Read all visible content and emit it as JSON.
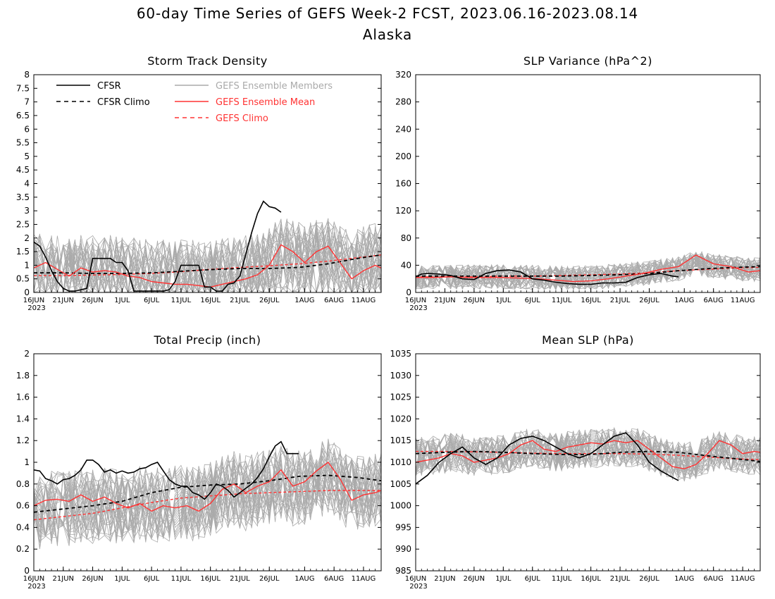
{
  "figure": {
    "title": "60-day Time Series of GEFS Week-2 FCST, 2023.06.16-2023.08.14",
    "subtitle": "Alaska"
  },
  "legend": {
    "items": [
      {
        "label": "CFSR",
        "color": "#000000",
        "dashed": false
      },
      {
        "label": "CFSR Climo",
        "color": "#000000",
        "dashed": true
      },
      {
        "label": "GEFS Ensemble Members",
        "color": "#aaaaaa",
        "dashed": false
      },
      {
        "label": "GEFS Ensemble Mean",
        "color": "#ff3333",
        "dashed": false
      },
      {
        "label": "GEFS Climo",
        "color": "#ff3333",
        "dashed": true
      }
    ]
  },
  "colors": {
    "cfsr": "#000000",
    "members": "#aaaaaa",
    "mean": "#ff3333"
  },
  "x_axis": {
    "ticks": [
      {
        "label": "16JUN",
        "day": 0
      },
      {
        "label": "21JUN",
        "day": 5
      },
      {
        "label": "26JUN",
        "day": 10
      },
      {
        "label": "1JUL",
        "day": 15
      },
      {
        "label": "6JUL",
        "day": 20
      },
      {
        "label": "11JUL",
        "day": 25
      },
      {
        "label": "16JUL",
        "day": 30
      },
      {
        "label": "21JUL",
        "day": 35
      },
      {
        "label": "26JUL",
        "day": 40
      },
      {
        "label": "1AUG",
        "day": 46
      },
      {
        "label": "6AUG",
        "day": 51
      },
      {
        "label": "11AUG",
        "day": 56
      }
    ],
    "year_label": "2023"
  },
  "chart_data": [
    {
      "type": "line",
      "title": "Storm Track Density",
      "ylim": [
        0,
        8
      ],
      "yticks": [
        "0",
        "0.5",
        "1",
        "1.5",
        "2",
        "2.5",
        "3",
        "3.5",
        "4",
        "4.5",
        "5",
        "5.5",
        "6",
        "6.5",
        "7",
        "7.5",
        "8"
      ],
      "ensemble_members": {
        "count": 30,
        "mean_level": 1.3,
        "spread": 1.4,
        "cap": 5.0,
        "floor": 0
      },
      "series": [
        {
          "name": "CFSR",
          "x": [
            0,
            1,
            2,
            3,
            4,
            5,
            6,
            7,
            8,
            9,
            10,
            11,
            12,
            13,
            14,
            15,
            16,
            17,
            18,
            19,
            20,
            21,
            22,
            23,
            24,
            25,
            26,
            27,
            28,
            29,
            30,
            31,
            32,
            33,
            34,
            35,
            36,
            37,
            38,
            39,
            40,
            41,
            42
          ],
          "y": [
            1.85,
            1.7,
            1.3,
            0.8,
            0.4,
            0.15,
            0.05,
            0.05,
            0.1,
            0.15,
            1.25,
            1.25,
            1.25,
            1.25,
            1.1,
            1.1,
            0.8,
            0.05,
            0.05,
            0.05,
            0.05,
            0.05,
            0.05,
            0.1,
            0.4,
            1.0,
            1.0,
            1.0,
            1.0,
            0.2,
            0.2,
            0.05,
            0.05,
            0.3,
            0.35,
            0.6,
            1.4,
            2.2,
            2.9,
            3.35,
            3.15,
            3.1,
            2.95
          ]
        },
        {
          "name": "CFSR Climo",
          "x": [
            0,
            5,
            10,
            15,
            20,
            25,
            30,
            35,
            40,
            45,
            50,
            55,
            59
          ],
          "y": [
            0.72,
            0.72,
            0.7,
            0.7,
            0.72,
            0.78,
            0.84,
            0.88,
            0.88,
            0.92,
            1.05,
            1.25,
            1.38
          ]
        },
        {
          "name": "GEFS Ensemble Mean",
          "x": [
            0,
            2,
            4,
            6,
            8,
            10,
            12,
            14,
            16,
            18,
            20,
            22,
            24,
            26,
            28,
            30,
            32,
            34,
            36,
            38,
            40,
            42,
            44,
            46,
            48,
            50,
            52,
            54,
            56,
            58,
            59
          ],
          "y": [
            0.9,
            1.1,
            0.85,
            0.6,
            0.9,
            0.75,
            0.8,
            0.75,
            0.6,
            0.55,
            0.4,
            0.35,
            0.3,
            0.3,
            0.25,
            0.2,
            0.3,
            0.4,
            0.5,
            0.65,
            1.0,
            1.75,
            1.5,
            1.1,
            1.5,
            1.7,
            1.1,
            0.5,
            0.8,
            1.0,
            0.9
          ]
        },
        {
          "name": "GEFS Climo",
          "x": [
            0,
            5,
            10,
            15,
            20,
            25,
            30,
            35,
            40,
            45,
            50,
            55,
            59
          ],
          "y": [
            0.62,
            0.62,
            0.64,
            0.66,
            0.7,
            0.76,
            0.85,
            0.92,
            0.98,
            1.05,
            1.15,
            1.28,
            1.38
          ]
        }
      ]
    },
    {
      "type": "line",
      "title": "SLP Variance (hPa^2)",
      "ylim": [
        0,
        320
      ],
      "yticks": [
        "0",
        "40",
        "80",
        "120",
        "160",
        "200",
        "240",
        "280",
        "320"
      ],
      "ensemble_members": {
        "count": 30,
        "mean_level": 28,
        "spread": 18,
        "cap": 130,
        "floor": 2
      },
      "series": [
        {
          "name": "CFSR",
          "x": [
            0,
            1,
            2,
            4,
            6,
            8,
            10,
            12,
            14,
            16,
            18,
            20,
            22,
            24,
            26,
            28,
            30,
            32,
            34,
            36,
            38,
            40,
            42,
            44,
            45
          ],
          "y": [
            23,
            27,
            28,
            27,
            25,
            20,
            19,
            28,
            32,
            33,
            30,
            20,
            18,
            15,
            13,
            12,
            12,
            14,
            14,
            15,
            22,
            26,
            28,
            24,
            23
          ]
        },
        {
          "name": "CFSR Climo",
          "x": [
            0,
            5,
            10,
            15,
            20,
            25,
            30,
            35,
            40,
            45,
            50,
            55,
            59
          ],
          "y": [
            24,
            24,
            24,
            24,
            24,
            24,
            25,
            26,
            28,
            32,
            35,
            37,
            38
          ]
        },
        {
          "name": "GEFS Ensemble Mean",
          "x": [
            0,
            3,
            6,
            9,
            12,
            15,
            18,
            21,
            24,
            27,
            30,
            33,
            36,
            39,
            42,
            45,
            48,
            51,
            54,
            57,
            59
          ],
          "y": [
            22,
            22,
            23,
            22,
            22,
            22,
            21,
            20,
            18,
            16,
            17,
            20,
            24,
            28,
            34,
            38,
            55,
            42,
            38,
            30,
            32
          ]
        },
        {
          "name": "GEFS Climo",
          "x": [
            0,
            5,
            10,
            15,
            20,
            25,
            30,
            35,
            40,
            45,
            50,
            55,
            59
          ],
          "y": [
            23,
            23,
            23,
            24,
            24,
            25,
            26,
            27,
            29,
            32,
            34,
            36,
            37
          ]
        }
      ]
    },
    {
      "type": "line",
      "title": "Total Precip (inch)",
      "ylim": [
        0,
        2
      ],
      "yticks": [
        "0",
        "0.2",
        "0.4",
        "0.6",
        "0.8",
        "1",
        "1.2",
        "1.4",
        "1.6",
        "1.8",
        "2"
      ],
      "ensemble_members": {
        "count": 30,
        "mean_level": 0.7,
        "spread": 0.35,
        "cap": 1.85,
        "floor": 0.08
      },
      "series": [
        {
          "name": "CFSR",
          "x": [
            0,
            1,
            2,
            3,
            4,
            5,
            6,
            7,
            8,
            9,
            10,
            11,
            12,
            13,
            14,
            15,
            16,
            17,
            18,
            19,
            20,
            21,
            22,
            23,
            24,
            25,
            26,
            27,
            28,
            29,
            30,
            31,
            32,
            33,
            34,
            35,
            36,
            37,
            38,
            39,
            40,
            41,
            42,
            43,
            44,
            45
          ],
          "y": [
            0.93,
            0.92,
            0.85,
            0.83,
            0.8,
            0.84,
            0.85,
            0.88,
            0.93,
            1.02,
            1.02,
            0.98,
            0.91,
            0.93,
            0.9,
            0.92,
            0.9,
            0.91,
            0.94,
            0.95,
            0.98,
            1.0,
            0.92,
            0.84,
            0.8,
            0.78,
            0.78,
            0.72,
            0.7,
            0.66,
            0.72,
            0.8,
            0.78,
            0.74,
            0.68,
            0.72,
            0.76,
            0.8,
            0.86,
            0.94,
            1.05,
            1.15,
            1.19,
            1.08,
            1.08,
            1.08
          ]
        },
        {
          "name": "CFSR Climo",
          "x": [
            0,
            5,
            10,
            15,
            20,
            25,
            30,
            35,
            40,
            45,
            50,
            55,
            59
          ],
          "y": [
            0.54,
            0.57,
            0.6,
            0.64,
            0.72,
            0.77,
            0.79,
            0.8,
            0.83,
            0.87,
            0.88,
            0.86,
            0.83
          ]
        },
        {
          "name": "GEFS Ensemble Mean",
          "x": [
            0,
            2,
            4,
            6,
            8,
            10,
            12,
            14,
            16,
            18,
            20,
            22,
            24,
            26,
            28,
            30,
            32,
            34,
            36,
            38,
            40,
            42,
            44,
            46,
            48,
            50,
            52,
            54,
            56,
            58,
            59
          ],
          "y": [
            0.6,
            0.65,
            0.66,
            0.64,
            0.7,
            0.64,
            0.68,
            0.62,
            0.58,
            0.62,
            0.55,
            0.6,
            0.58,
            0.6,
            0.55,
            0.62,
            0.75,
            0.8,
            0.72,
            0.78,
            0.82,
            0.93,
            0.78,
            0.82,
            0.92,
            1.0,
            0.85,
            0.65,
            0.7,
            0.72,
            0.74
          ]
        },
        {
          "name": "GEFS Climo",
          "x": [
            0,
            5,
            10,
            15,
            20,
            25,
            30,
            35,
            40,
            45,
            50,
            55,
            59
          ],
          "y": [
            0.47,
            0.5,
            0.53,
            0.58,
            0.63,
            0.67,
            0.69,
            0.71,
            0.72,
            0.73,
            0.74,
            0.74,
            0.74
          ]
        }
      ]
    },
    {
      "type": "line",
      "title": "Mean SLP (hPa)",
      "ylim": [
        985,
        1035
      ],
      "yticks": [
        "985",
        "990",
        "995",
        "1000",
        "1005",
        "1010",
        "1015",
        "1020",
        "1025",
        "1030",
        "1035"
      ],
      "ensemble_members": {
        "count": 30,
        "mean_level": 1012,
        "spread": 4.5,
        "cap": 1024,
        "floor": 997
      },
      "series": [
        {
          "name": "CFSR",
          "x": [
            0,
            2,
            4,
            6,
            8,
            10,
            12,
            14,
            16,
            18,
            20,
            22,
            24,
            26,
            28,
            30,
            32,
            34,
            36,
            38,
            40,
            42,
            44,
            45
          ],
          "y": [
            1005,
            1007,
            1010,
            1012,
            1013.5,
            1011,
            1009.5,
            1011,
            1014,
            1015.5,
            1016,
            1015,
            1013.5,
            1012,
            1011,
            1012,
            1014,
            1016,
            1016.8,
            1014,
            1010,
            1008,
            1006.5,
            1005.8
          ]
        },
        {
          "name": "CFSR Climo",
          "x": [
            0,
            5,
            10,
            15,
            20,
            25,
            30,
            35,
            40,
            45,
            50,
            55,
            59
          ],
          "y": [
            1012,
            1012.3,
            1012.5,
            1012.3,
            1012,
            1011.8,
            1011.8,
            1012.3,
            1012.5,
            1012.3,
            1011.5,
            1010.8,
            1010.2
          ]
        },
        {
          "name": "GEFS Ensemble Mean",
          "x": [
            0,
            2,
            4,
            6,
            8,
            10,
            12,
            14,
            16,
            18,
            20,
            22,
            24,
            26,
            28,
            30,
            32,
            34,
            36,
            38,
            40,
            42,
            44,
            46,
            48,
            50,
            52,
            54,
            56,
            58,
            59
          ],
          "y": [
            1010,
            1010.5,
            1011,
            1012,
            1011.5,
            1010,
            1010.5,
            1011,
            1012,
            1014,
            1015,
            1013,
            1012.5,
            1013.5,
            1014,
            1014.5,
            1014.2,
            1015,
            1014.5,
            1015,
            1013,
            1011,
            1009,
            1008.5,
            1009.5,
            1012,
            1015,
            1014,
            1012,
            1012.5,
            1012.3
          ]
        },
        {
          "name": "GEFS Climo",
          "x": [
            0,
            5,
            10,
            15,
            20,
            25,
            30,
            35,
            40,
            45,
            50,
            55,
            59
          ],
          "y": [
            1012.5,
            1012.5,
            1012.4,
            1012.3,
            1012.1,
            1012,
            1012,
            1012,
            1011.9,
            1011.6,
            1011.2,
            1010.8,
            1010.6
          ]
        }
      ]
    }
  ]
}
